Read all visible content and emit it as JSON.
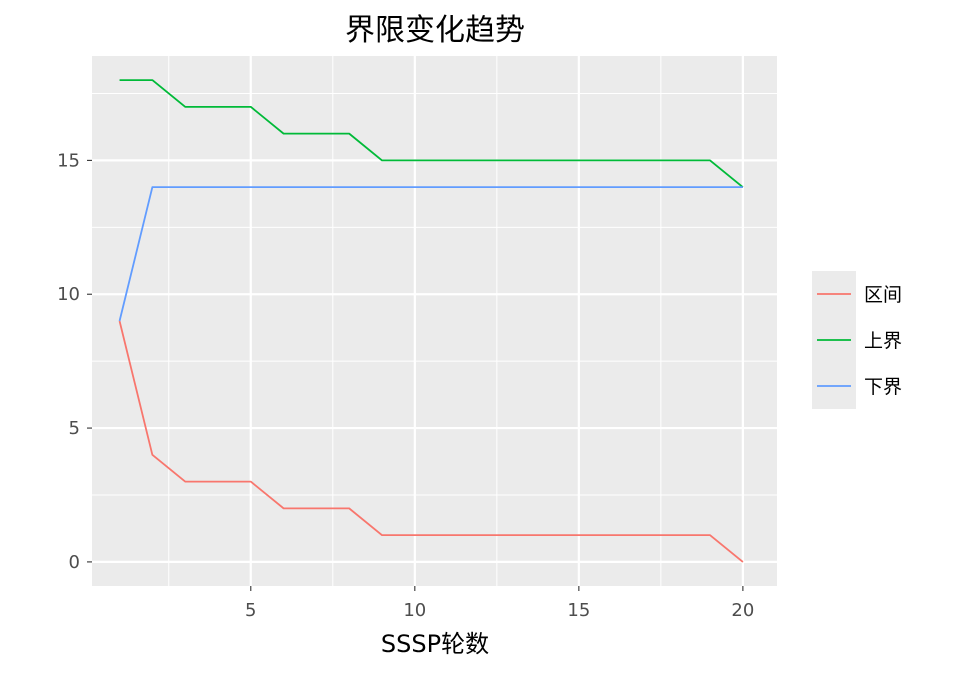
{
  "chart_data": {
    "type": "line",
    "title": "界限变化趋势",
    "xlabel": "SSSP轮数",
    "ylabel": "",
    "xlim": [
      0.16,
      21.04
    ],
    "ylim": [
      -0.9,
      18.9
    ],
    "x_ticks": [
      5,
      10,
      15,
      20
    ],
    "y_ticks": [
      0,
      5,
      10,
      15
    ],
    "x_minor_ticks": [
      2.5,
      7.5,
      12.5,
      17.5
    ],
    "y_minor_ticks": [
      2.5,
      7.5,
      12.5,
      17.5
    ],
    "grid": true,
    "legend_position": "right",
    "background": "#ebebeb",
    "x": [
      1,
      2,
      3,
      4,
      5,
      6,
      7,
      8,
      9,
      10,
      11,
      12,
      13,
      14,
      15,
      16,
      17,
      18,
      19,
      20
    ],
    "series": [
      {
        "name": "区间",
        "color": "#f8766d",
        "values": [
          9,
          4,
          3,
          3,
          3,
          2,
          2,
          2,
          1,
          1,
          1,
          1,
          1,
          1,
          1,
          1,
          1,
          1,
          1,
          0
        ]
      },
      {
        "name": "上界",
        "color": "#00ba38",
        "values": [
          18,
          18,
          17,
          17,
          17,
          16,
          16,
          16,
          15,
          15,
          15,
          15,
          15,
          15,
          15,
          15,
          15,
          15,
          15,
          14
        ]
      },
      {
        "name": "下界",
        "color": "#619cff",
        "values": [
          9,
          14,
          14,
          14,
          14,
          14,
          14,
          14,
          14,
          14,
          14,
          14,
          14,
          14,
          14,
          14,
          14,
          14,
          14,
          14
        ]
      }
    ]
  }
}
